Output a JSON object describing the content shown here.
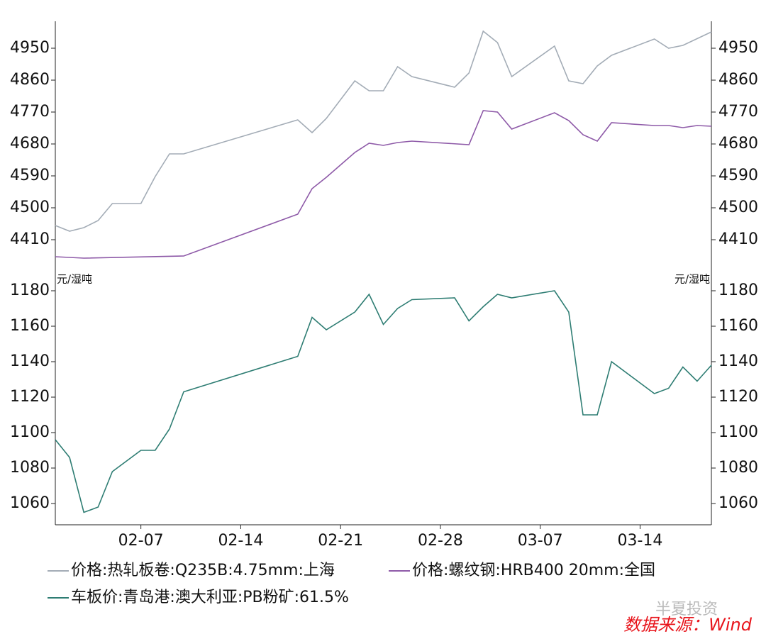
{
  "chart_data": [
    {
      "type": "line",
      "xlim": [
        "02-01",
        "03-19"
      ],
      "ylim": [
        4330,
        5026
      ],
      "yticks": [
        4410,
        4500,
        4590,
        4680,
        4770,
        4860,
        4950
      ],
      "mirror_y_axis": true,
      "series": [
        {
          "name": "价格:热轧板卷:Q235B:4.75mm:上海",
          "color": "#a3acb6",
          "x": [
            "02-01",
            "02-02",
            "02-03",
            "02-04",
            "02-05",
            "02-07",
            "02-08",
            "02-09",
            "02-10",
            "02-18",
            "02-19",
            "02-20",
            "02-22",
            "02-23",
            "02-24",
            "02-25",
            "02-26",
            "03-01",
            "03-02",
            "03-03",
            "03-04",
            "03-05",
            "03-08",
            "03-09",
            "03-10",
            "03-11",
            "03-12",
            "03-15",
            "03-16",
            "03-17",
            "03-19"
          ],
          "values": [
            4450,
            4434,
            4444,
            4464,
            4512,
            4512,
            4588,
            4652,
            4652,
            4748,
            4712,
            4752,
            4858,
            4830,
            4830,
            4898,
            4870,
            4840,
            4880,
            4998,
            4966,
            4870,
            4956,
            4858,
            4850,
            4900,
            4930,
            4976,
            4950,
            4958,
            4996
          ]
        },
        {
          "name": "价格:螺纹钢:HRB400 20mm:全国",
          "color": "#8e5aa8",
          "x": [
            "02-01",
            "02-03",
            "02-10",
            "02-18",
            "02-19",
            "02-20",
            "02-22",
            "02-23",
            "02-24",
            "02-25",
            "02-26",
            "03-02",
            "03-03",
            "03-04",
            "03-05",
            "03-08",
            "03-09",
            "03-10",
            "03-11",
            "03-12",
            "03-15",
            "03-16",
            "03-17",
            "03-18",
            "03-19"
          ],
          "values": [
            4362,
            4358,
            4364,
            4482,
            4554,
            4586,
            4656,
            4682,
            4676,
            4684,
            4688,
            4678,
            4774,
            4770,
            4722,
            4768,
            4746,
            4706,
            4688,
            4740,
            4732,
            4732,
            4726,
            4732,
            4730
          ]
        }
      ]
    },
    {
      "type": "line",
      "xlim": [
        "02-01",
        "03-19"
      ],
      "ylim": [
        1048,
        1192
      ],
      "yticks": [
        1060,
        1080,
        1100,
        1120,
        1140,
        1160,
        1180
      ],
      "mirror_y_axis": true,
      "y_label": "元/湿吨",
      "y2_label": "元/湿吨",
      "xticks": [
        "02-07",
        "02-14",
        "02-21",
        "02-28",
        "03-07",
        "03-14"
      ],
      "series": [
        {
          "name": "车板价:青岛港:澳大利亚:PB粉矿:61.5%",
          "color": "#2e7d73",
          "x": [
            "02-01",
            "02-02",
            "02-03",
            "02-04",
            "02-05",
            "02-07",
            "02-08",
            "02-09",
            "02-10",
            "02-18",
            "02-19",
            "02-20",
            "02-22",
            "02-23",
            "02-24",
            "02-25",
            "02-26",
            "03-01",
            "03-02",
            "03-03",
            "03-04",
            "03-05",
            "03-08",
            "03-09",
            "03-10",
            "03-11",
            "03-12",
            "03-15",
            "03-16",
            "03-17",
            "03-18",
            "03-19"
          ],
          "values": [
            1096,
            1086,
            1055,
            1058,
            1078,
            1090,
            1090,
            1102,
            1123,
            1143,
            1165,
            1158,
            1168,
            1178,
            1161,
            1170,
            1175,
            1176,
            1163,
            1171,
            1178,
            1176,
            1180,
            1168,
            1110,
            1110,
            1140,
            1122,
            1125,
            1137,
            1129,
            1138
          ]
        }
      ]
    }
  ],
  "watermark": "半夏投资",
  "source": "数据来源：Wind"
}
